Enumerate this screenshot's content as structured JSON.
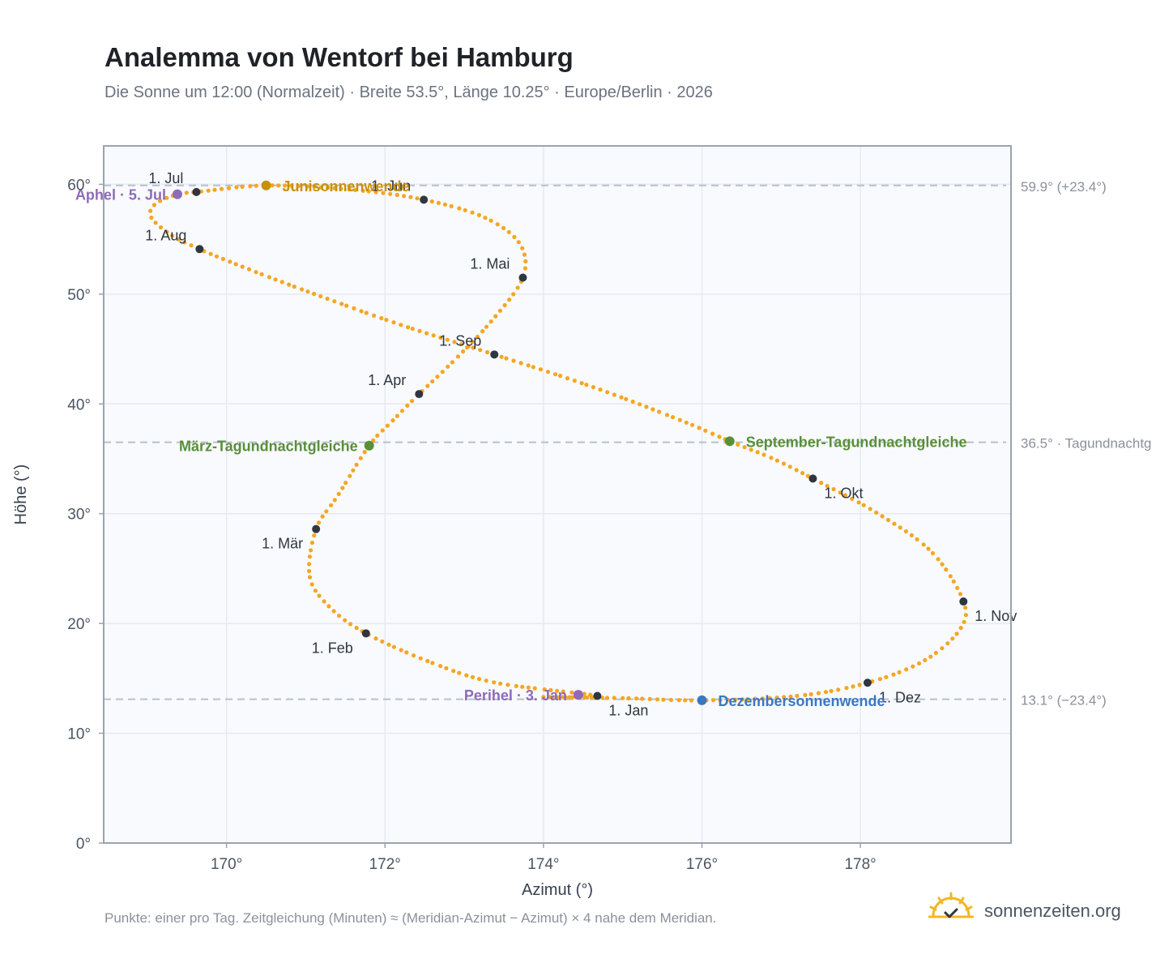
{
  "header": {
    "title": "Analemma von Wentorf bei Hamburg",
    "subtitle": "Die Sonne um 12:00 (Normalzeit) · Breite 53.5°, Länge 10.25° · Europe/Berlin · 2026"
  },
  "footer": {
    "note": "Punkte: einer pro Tag. Zeitgleichung (Minuten) ≈ (Meridian-Azimut − Azimut) × 4 nahe dem Meridian.",
    "brand": "sonnenzeiten.org"
  },
  "colors": {
    "curve": "#f5a623",
    "month_marker": "#2f3640",
    "solstice_june": "#c8900a",
    "solstice_december": "#3a78c2",
    "equinox": "#5a8f3a",
    "apsis": "#8e6bb8",
    "reference_line": "#b8c0cc",
    "reference_text": "#8b919b",
    "plot_bg": "#f8fafd",
    "grid": "#e6eaf0",
    "axis": "#9aa3b0",
    "logo": "#f2b724"
  },
  "chart_data": {
    "type": "scatter",
    "title": "Analemma von Wentorf bei Hamburg",
    "xlabel": "Azimut (°)",
    "ylabel": "Höhe (°)",
    "xlim": [
      168.45,
      179.9
    ],
    "ylim": [
      0,
      63.5
    ],
    "xticks": [
      170,
      172,
      174,
      176,
      178
    ],
    "yticks": [
      0,
      10,
      20,
      30,
      40,
      50,
      60
    ],
    "tick_suffix": "°",
    "grid": true,
    "months": [
      {
        "label": "1. Jan",
        "az": 174.68,
        "alt": 13.4,
        "label_pos": "below-right"
      },
      {
        "label": "1. Feb",
        "az": 171.76,
        "alt": 19.1,
        "label_pos": "below-left"
      },
      {
        "label": "1. Mär",
        "az": 171.13,
        "alt": 28.6,
        "label_pos": "below-left"
      },
      {
        "label": "1. Apr",
        "az": 172.43,
        "alt": 40.9,
        "label_pos": "above-left"
      },
      {
        "label": "1. Mai",
        "az": 173.74,
        "alt": 51.5,
        "label_pos": "above-left"
      },
      {
        "label": "1. Jun",
        "az": 172.49,
        "alt": 58.6,
        "label_pos": "above-left"
      },
      {
        "label": "1. Jul",
        "az": 169.62,
        "alt": 59.3,
        "label_pos": "above-left"
      },
      {
        "label": "1. Aug",
        "az": 169.66,
        "alt": 54.1,
        "label_pos": "above-left"
      },
      {
        "label": "1. Sep",
        "az": 173.38,
        "alt": 44.5,
        "label_pos": "above-left"
      },
      {
        "label": "1. Okt",
        "az": 177.4,
        "alt": 33.2,
        "label_pos": "below-right"
      },
      {
        "label": "1. Nov",
        "az": 179.3,
        "alt": 22.0,
        "label_pos": "below-right"
      },
      {
        "label": "1. Dez",
        "az": 178.09,
        "alt": 14.6,
        "label_pos": "below-right"
      }
    ],
    "events": [
      {
        "label": "Junisonnenwende",
        "az": 170.5,
        "alt": 59.9,
        "color_key": "solstice_june",
        "label_pos": "right"
      },
      {
        "label": "Dezembersonnenwende",
        "az": 176.0,
        "alt": 13.0,
        "color_key": "solstice_december",
        "label_pos": "right"
      },
      {
        "label": "März-Tagundnachtgleiche",
        "az": 171.8,
        "alt": 36.2,
        "color_key": "equinox",
        "label_pos": "left"
      },
      {
        "label": "September-Tagundnachtgleiche",
        "az": 176.35,
        "alt": 36.6,
        "color_key": "equinox",
        "label_pos": "right"
      },
      {
        "label": "Aphel · 5. Jul",
        "az": 169.38,
        "alt": 59.1,
        "color_key": "apsis",
        "label_pos": "left"
      },
      {
        "label": "Perihel · 3. Jan",
        "az": 174.44,
        "alt": 13.5,
        "color_key": "apsis",
        "label_pos": "left"
      }
    ],
    "reference_lines": [
      {
        "alt": 59.9,
        "label": "59.9° (+23.4°)"
      },
      {
        "alt": 36.5,
        "label": "36.5° · Tagundnachtg"
      },
      {
        "alt": 13.1,
        "label": "13.1° (−23.4°)"
      }
    ],
    "curve_points_per_day": 1,
    "curve_guide": [
      {
        "az": 174.0,
        "alt": 13.3
      },
      {
        "az": 174.68,
        "alt": 13.4
      },
      {
        "az": 173.4,
        "alt": 14.6
      },
      {
        "az": 172.6,
        "alt": 16.4
      },
      {
        "az": 171.76,
        "alt": 19.1
      },
      {
        "az": 171.3,
        "alt": 21.5
      },
      {
        "az": 171.05,
        "alt": 24.3
      },
      {
        "az": 171.13,
        "alt": 28.6
      },
      {
        "az": 171.4,
        "alt": 31.6
      },
      {
        "az": 171.8,
        "alt": 36.2
      },
      {
        "az": 172.1,
        "alt": 38.5
      },
      {
        "az": 172.43,
        "alt": 40.9
      },
      {
        "az": 172.85,
        "alt": 43.8
      },
      {
        "az": 173.35,
        "alt": 47.6
      },
      {
        "az": 173.74,
        "alt": 51.5
      },
      {
        "az": 173.7,
        "alt": 54.6
      },
      {
        "az": 173.25,
        "alt": 57.0
      },
      {
        "az": 172.49,
        "alt": 58.6
      },
      {
        "az": 171.6,
        "alt": 59.5
      },
      {
        "az": 170.5,
        "alt": 59.9
      },
      {
        "az": 169.62,
        "alt": 59.3
      },
      {
        "az": 169.38,
        "alt": 59.1
      },
      {
        "az": 169.1,
        "alt": 58.2
      },
      {
        "az": 169.05,
        "alt": 57.0
      },
      {
        "az": 169.3,
        "alt": 55.4
      },
      {
        "az": 169.66,
        "alt": 54.1
      },
      {
        "az": 170.2,
        "alt": 52.5
      },
      {
        "az": 171.0,
        "alt": 50.3
      },
      {
        "az": 172.2,
        "alt": 47.2
      },
      {
        "az": 173.38,
        "alt": 44.5
      },
      {
        "az": 174.6,
        "alt": 41.6
      },
      {
        "az": 175.7,
        "alt": 38.6
      },
      {
        "az": 176.35,
        "alt": 36.6
      },
      {
        "az": 176.9,
        "alt": 35.0
      },
      {
        "az": 177.4,
        "alt": 33.2
      },
      {
        "az": 178.2,
        "alt": 30.1
      },
      {
        "az": 178.9,
        "alt": 26.5
      },
      {
        "az": 179.3,
        "alt": 22.0
      },
      {
        "az": 179.25,
        "alt": 19.4
      },
      {
        "az": 178.8,
        "alt": 16.6
      },
      {
        "az": 178.09,
        "alt": 14.6
      },
      {
        "az": 177.2,
        "alt": 13.4
      },
      {
        "az": 176.0,
        "alt": 13.0
      },
      {
        "az": 175.0,
        "alt": 13.2
      },
      {
        "az": 174.0,
        "alt": 13.3
      }
    ]
  }
}
